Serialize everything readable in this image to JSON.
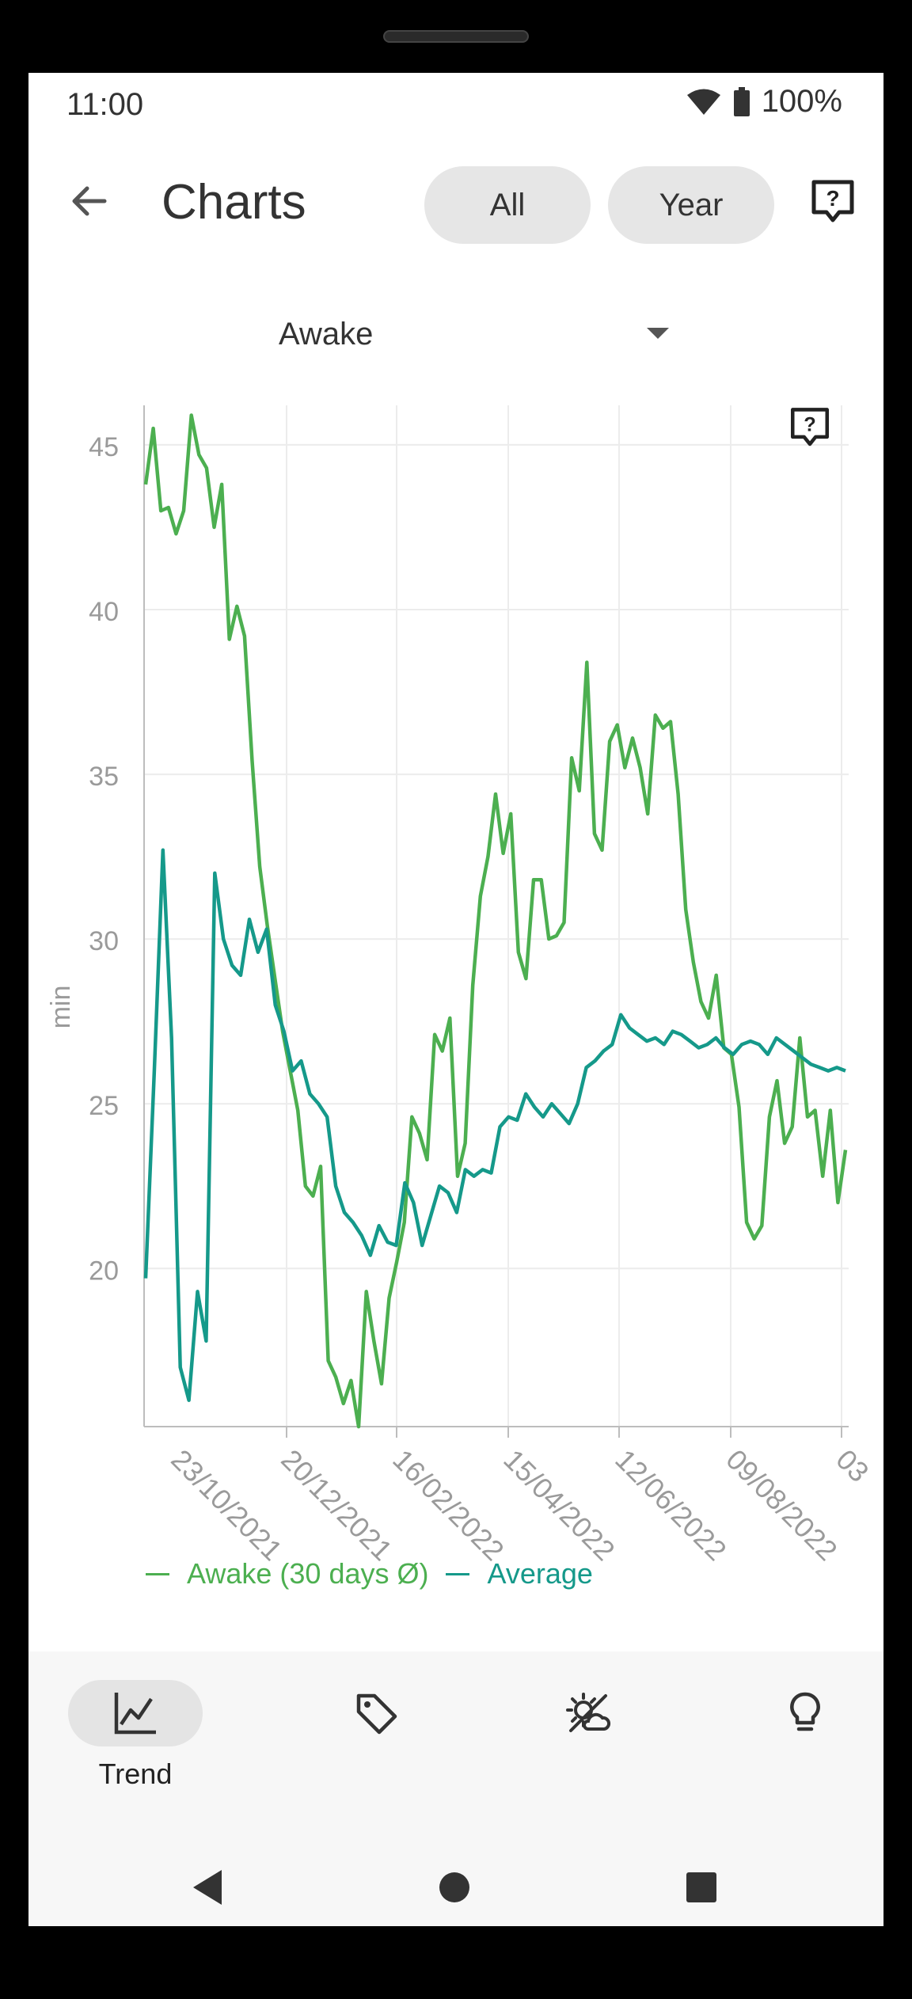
{
  "status_bar": {
    "time": "11:00",
    "battery": "100%"
  },
  "app_bar": {
    "title": "Charts",
    "filter_all": "All",
    "filter_year": "Year"
  },
  "metric_select": {
    "value": "Awake"
  },
  "chart_data": {
    "type": "line",
    "ylabel": "min",
    "yticks": [
      20,
      25,
      30,
      35,
      40,
      45
    ],
    "ylim": [
      15.2,
      46.2
    ],
    "xticks": [
      "23/10/2021",
      "20/12/2021",
      "16/02/2022",
      "15/04/2022",
      "12/06/2022",
      "09/08/2022",
      "03"
    ],
    "grid": true,
    "series": [
      {
        "name": "Awake (30 days Ø)",
        "color": "#4caf50",
        "values": [
          43.8,
          45.5,
          43.0,
          43.1,
          42.3,
          43.0,
          45.9,
          44.7,
          44.3,
          42.5,
          43.8,
          39.1,
          40.1,
          39.2,
          35.4,
          32.2,
          30.4,
          28.8,
          27.2,
          26.0,
          24.8,
          22.5,
          22.2,
          23.1,
          17.2,
          16.7,
          15.9,
          16.6,
          15.0,
          19.3,
          17.8,
          16.5,
          19.1,
          20.2,
          21.4,
          24.6,
          24.1,
          23.3,
          27.1,
          26.6,
          27.6,
          22.8,
          23.8,
          28.6,
          31.3,
          32.5,
          34.4,
          32.6,
          33.8,
          29.6,
          28.8,
          31.8,
          31.8,
          30.0,
          30.1,
          30.5,
          35.5,
          34.5,
          38.4,
          33.2,
          32.7,
          36.0,
          36.5,
          35.2,
          36.1,
          35.2,
          33.8,
          36.8,
          36.4,
          36.6,
          34.4,
          30.9,
          29.3,
          28.1,
          27.6,
          28.9,
          26.7,
          26.5,
          24.9,
          21.4,
          20.9,
          21.3,
          24.6,
          25.7,
          23.8,
          24.3,
          27.0,
          24.6,
          24.8,
          22.8,
          24.8,
          22.0,
          23.6
        ]
      },
      {
        "name": "Average",
        "color": "#15998a",
        "values": [
          19.7,
          26.0,
          32.7,
          27.0,
          17.0,
          16.0,
          19.3,
          17.8,
          32.0,
          30.0,
          29.2,
          28.9,
          30.6,
          29.6,
          30.3,
          28.0,
          27.2,
          26.0,
          26.3,
          25.3,
          25.0,
          24.6,
          22.5,
          21.7,
          21.4,
          21.0,
          20.4,
          21.3,
          20.8,
          20.7,
          22.6,
          22.0,
          20.7,
          21.6,
          22.5,
          22.3,
          21.7,
          23.0,
          22.8,
          23.0,
          22.9,
          24.3,
          24.6,
          24.5,
          25.3,
          24.9,
          24.6,
          25.0,
          24.7,
          24.4,
          25.0,
          26.1,
          26.3,
          26.6,
          26.8,
          27.7,
          27.3,
          27.1,
          26.9,
          27.0,
          26.8,
          27.2,
          27.1,
          26.9,
          26.7,
          26.8,
          27.0,
          26.7,
          26.5,
          26.8,
          26.9,
          26.8,
          26.5,
          27.0,
          26.8,
          26.6,
          26.4,
          26.2,
          26.1,
          26.0,
          26.1,
          26.0
        ]
      }
    ]
  },
  "bottom_nav": {
    "items": [
      {
        "label": "Trend",
        "icon": "chart-line-icon",
        "active": true
      },
      {
        "label": "",
        "icon": "tag-icon"
      },
      {
        "label": "",
        "icon": "weather-partly-icon"
      },
      {
        "label": "",
        "icon": "lightbulb-icon"
      }
    ]
  }
}
